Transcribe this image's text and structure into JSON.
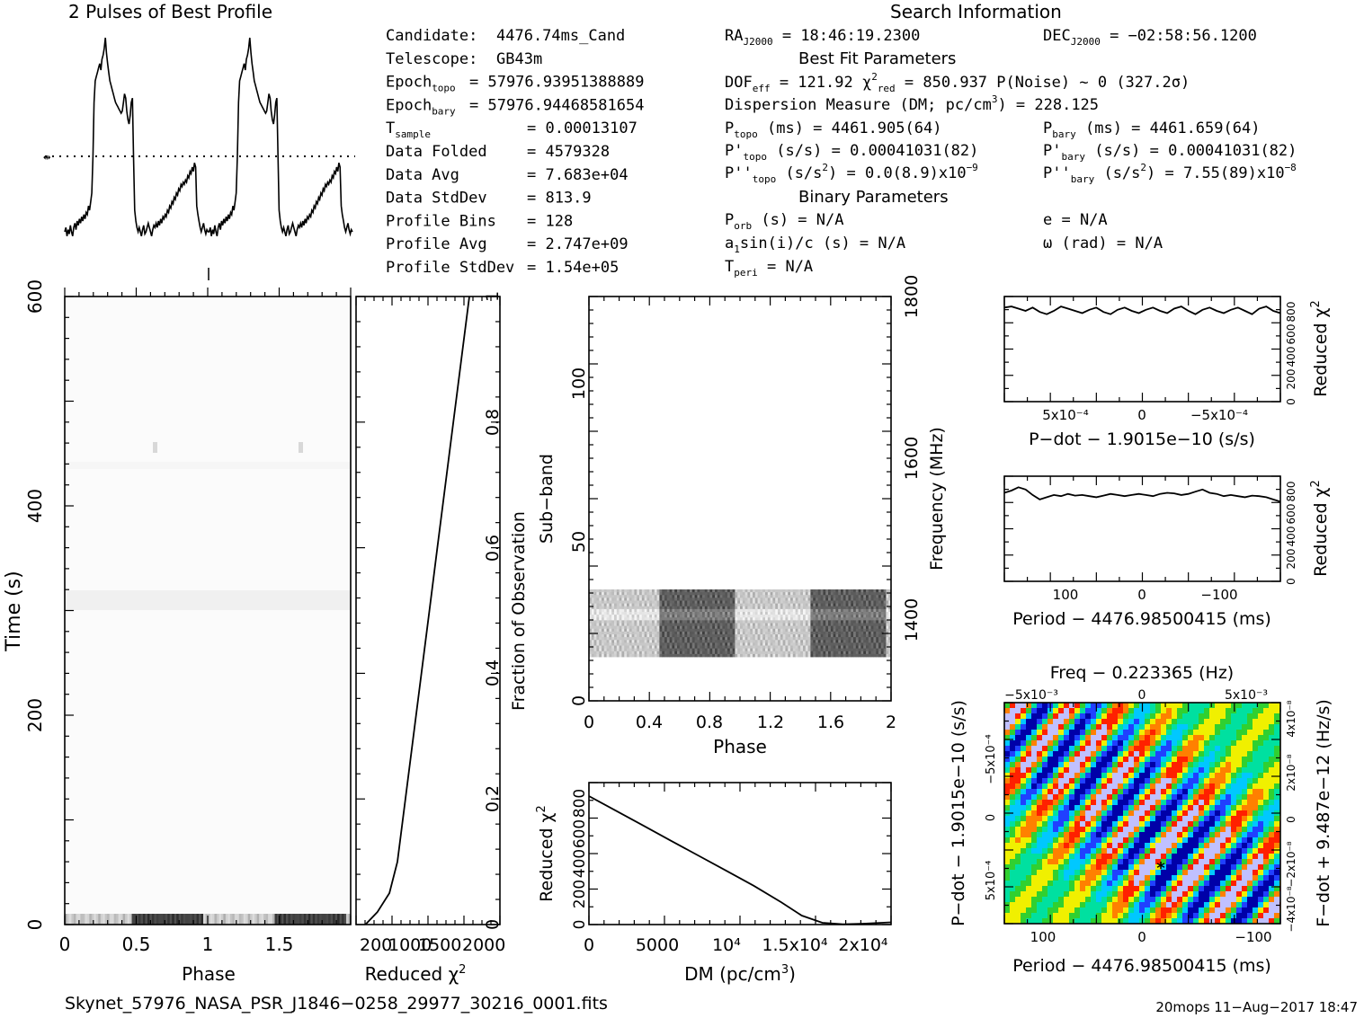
{
  "header": {
    "profile_title": "2 Pulses of Best Profile",
    "search_title": "Search Information",
    "best_fit_title": "Best Fit Parameters",
    "binary_title": "Binary Parameters"
  },
  "info_left": [
    {
      "k": "Candidate:",
      "v": "4476.74ms_Cand"
    },
    {
      "k": "Telescope:",
      "v": "GB43m"
    },
    {
      "k": "Epoch",
      "sub": "topo",
      "v": "= 57976.93951388889"
    },
    {
      "k": "Epoch",
      "sub": "bary",
      "v": "= 57976.94468581654"
    },
    {
      "k": "T",
      "sub": "sample",
      "v": "=  0.00013107"
    },
    {
      "k": "Data Folded",
      "v": "=  4579328"
    },
    {
      "k": "Data Avg",
      "v": "=  7.683e+04"
    },
    {
      "k": "Data StdDev",
      "v": "=  813.9"
    },
    {
      "k": "Profile Bins",
      "v": "=  128"
    },
    {
      "k": "Profile Avg",
      "v": "=  2.747e+09"
    },
    {
      "k": "Profile StdDev",
      "v": "=  1.54e+05"
    }
  ],
  "info_mid": {
    "ra": "RA_J2000 = 18:46:19.2300",
    "dof": "DOF_eff = 121.92  χ²_red = 850.937  P(Noise) ~ 0   (327.2σ)",
    "dm": "Dispersion Measure (DM; pc/cm³) = 228.125",
    "ptopo": "P_topo (ms) =  4461.905(64)",
    "pdtopo": "P'_topo (s/s) =  0.00041031(82)",
    "pddtopo": "P''_topo (s/s²) = 0.0(8.9)x10⁻⁹",
    "porb": "P_orb (s) = N/A",
    "asini": "a₁sin(i)/c (s) = N/A",
    "tperi": "T_peri = N/A"
  },
  "info_right": {
    "dec": "DEC_J2000 = −02:58:56.1200",
    "pbary": "P_bary (ms) =  4461.659(64)",
    "pdbary": "P'_bary (s/s) =  0.00041031(82)",
    "pddbary": "P''_bary (s/s²) =  7.55(89)x10⁻⁸",
    "ecc": "e = N/A",
    "omega": "ω (rad) = N/A"
  },
  "footer": {
    "filename": "Skynet_57976_NASA_PSR_J1846−0258_29977_30216_0001.fits",
    "stamp": "20mops 11−Aug−2017 18:47"
  },
  "chart_data": [
    {
      "type": "line",
      "name": "2 Pulses of Best Profile",
      "title": "2 Pulses of Best Profile",
      "x_range": [
        0,
        2
      ],
      "profile_one_pulse": [
        0.1,
        0.12,
        0.08,
        0.11,
        0.09,
        0.13,
        0.1,
        0.08,
        0.12,
        0.14,
        0.11,
        0.15,
        0.13,
        0.16,
        0.14,
        0.17,
        0.15,
        0.18,
        0.16,
        0.19,
        0.18,
        0.22,
        0.2,
        0.24,
        0.28,
        0.45,
        0.7,
        0.8,
        0.82,
        0.84,
        0.86,
        0.88,
        0.85,
        0.9,
        0.92,
        0.95,
        1.0,
        0.93,
        0.88,
        0.84,
        0.8,
        0.78,
        0.76,
        0.74,
        0.72,
        0.7,
        0.69,
        0.68,
        0.67,
        0.66,
        0.65,
        0.66,
        0.7,
        0.74,
        0.72,
        0.66,
        0.62,
        0.6,
        0.64,
        0.7,
        0.72,
        0.45,
        0.2,
        0.15,
        0.12,
        0.1,
        0.12,
        0.1,
        0.08,
        0.11,
        0.13,
        0.09,
        0.1,
        0.12,
        0.14,
        0.12,
        0.1,
        0.08,
        0.11,
        0.13,
        0.12,
        0.14,
        0.12,
        0.15,
        0.13,
        0.16,
        0.14,
        0.17,
        0.16,
        0.18,
        0.17,
        0.2,
        0.19,
        0.22,
        0.21,
        0.24,
        0.23,
        0.26,
        0.25,
        0.28,
        0.27,
        0.3,
        0.29,
        0.32,
        0.31,
        0.33,
        0.32,
        0.34,
        0.33,
        0.36,
        0.35,
        0.38,
        0.37,
        0.4,
        0.38,
        0.42,
        0.4,
        0.22,
        0.18,
        0.15,
        0.12,
        0.1,
        0.12,
        0.14,
        0.11,
        0.09,
        0.11,
        0.1
      ],
      "noise_line_level": 0.35
    },
    {
      "type": "heatmap",
      "name": "Time vs Phase",
      "xlabel": "Phase",
      "ylabel": "Time (s)",
      "xlim": [
        0,
        2
      ],
      "ylim": [
        0,
        600
      ],
      "xticks": [
        "0",
        "0.5",
        "1",
        "1.5"
      ],
      "yticks": [
        "0",
        "200",
        "400",
        "600"
      ],
      "features": [
        {
          "type": "dark band at bottom",
          "time_range": [
            0,
            10
          ]
        },
        {
          "type": "faint horizontal band",
          "time_range": [
            300,
            318
          ]
        },
        {
          "type": "faint spots",
          "time": 460,
          "phase": [
            0.63,
            1.63
          ]
        }
      ]
    },
    {
      "type": "line",
      "name": "Reduced χ² vs Fraction of Observation",
      "xlabel": "Reduced χ²",
      "ylabel": "Fraction of Observation",
      "xticks": [
        "200",
        "1000",
        "1500",
        "2000"
      ],
      "yticks": [
        "0",
        "0.2",
        "0.4",
        "0.6",
        "0.8",
        "1"
      ],
      "ylim": [
        0,
        1
      ],
      "points": [
        [
          50,
          0.0
        ],
        [
          200,
          0.02
        ],
        [
          350,
          0.05
        ],
        [
          450,
          0.1
        ],
        [
          550,
          0.2
        ],
        [
          650,
          0.3
        ],
        [
          750,
          0.4
        ],
        [
          850,
          0.5
        ],
        [
          950,
          0.6
        ],
        [
          1050,
          0.7
        ],
        [
          1150,
          0.8
        ],
        [
          1250,
          0.9
        ],
        [
          1350,
          1.0
        ]
      ]
    },
    {
      "type": "heatmap",
      "name": "Sub-band vs Phase",
      "xlabel": "Phase",
      "ylabel": "Sub-band",
      "y2label": "Frequency (MHz)",
      "xlim": [
        0,
        2
      ],
      "ylim": [
        0,
        128
      ],
      "xticks": [
        "0",
        "0.4",
        "0.8",
        "1.2",
        "1.6",
        "2"
      ],
      "yticks": [
        "0",
        "50",
        "100"
      ],
      "y2ticks": [
        "1400",
        "1600",
        "1800"
      ],
      "features": [
        {
          "type": "signal rows",
          "subband_range": [
            14,
            35
          ]
        },
        {
          "type": "dark pulse region",
          "phase_range": [
            0.46,
            0.96
          ]
        },
        {
          "type": "dark pulse region",
          "phase_range": [
            1.46,
            1.96
          ]
        }
      ]
    },
    {
      "type": "line",
      "name": "Reduced χ² vs DM",
      "xlabel": "DM (pc/cm³)",
      "ylabel": "Reduced χ²",
      "xticks": [
        "0",
        "5000",
        "10⁴",
        "1.5x10⁴",
        "2x10⁴"
      ],
      "yticks": [
        "0",
        "200",
        "400",
        "600",
        "800"
      ],
      "xlim": [
        0,
        22000
      ],
      "ylim": [
        0,
        950
      ],
      "points": [
        [
          0,
          860
        ],
        [
          2000,
          760
        ],
        [
          4000,
          660
        ],
        [
          6000,
          560
        ],
        [
          8000,
          460
        ],
        [
          10000,
          360
        ],
        [
          12000,
          260
        ],
        [
          14000,
          150
        ],
        [
          15500,
          60
        ],
        [
          17000,
          12
        ],
        [
          18500,
          2
        ],
        [
          20000,
          6
        ],
        [
          22000,
          15
        ]
      ]
    },
    {
      "type": "line",
      "name": "Reduced χ² vs P-dot",
      "xlabel": "P−dot − 1.9015e−10 (s/s)",
      "ylabel": "Reduced χ²",
      "xticks": [
        "5x10⁻⁴",
        "0",
        "−5x10⁻⁴"
      ],
      "yticks": [
        "0",
        "200",
        "400",
        "600",
        "800"
      ],
      "xlim": [
        0.0009,
        -0.0009
      ],
      "ylim": [
        0,
        950
      ],
      "values": [
        850,
        860,
        840,
        820,
        850,
        810,
        790,
        820,
        860,
        840,
        820,
        800,
        830,
        850,
        810,
        790,
        830,
        850,
        820,
        800,
        830,
        850,
        820,
        800,
        840,
        860,
        820,
        790,
        830,
        850,
        820,
        800,
        830,
        850,
        820,
        790,
        840,
        860,
        820,
        800
      ]
    },
    {
      "type": "line",
      "name": "Reduced χ² vs Period",
      "xlabel": "Period − 4476.98500415 (ms)",
      "ylabel": "Reduced χ²",
      "xticks": [
        "100",
        "0",
        "−100"
      ],
      "yticks": [
        "0",
        "200",
        "400",
        "600",
        "800"
      ],
      "xlim": [
        140,
        -140
      ],
      "ylim": [
        0,
        950
      ],
      "values": [
        800,
        820,
        850,
        830,
        780,
        740,
        760,
        780,
        770,
        790,
        775,
        780,
        770,
        760,
        775,
        790,
        780,
        770,
        780,
        790,
        780,
        770,
        790,
        800,
        795,
        780,
        790,
        810,
        830,
        800,
        790,
        770,
        780,
        770,
        760,
        775,
        770,
        760,
        740,
        720
      ]
    },
    {
      "type": "heatmap",
      "name": "P-dot vs Period",
      "title": "Freq − 0.223365 (Hz)",
      "xlabel": "Period − 4476.98500415 (ms)",
      "ylabel": "P−dot − 1.9015e−10 (s/s)",
      "y2label": "F−dot + 9.487e−12 (Hz/s)",
      "xticks": [
        "100",
        "0",
        "−100"
      ],
      "x2ticks": [
        "−5x10⁻³",
        "0",
        "5x10⁻³"
      ],
      "yticks": [
        "−5x10⁻⁴",
        "0",
        "5x10⁻⁴"
      ],
      "y2ticks": [
        "4x10⁻⁸",
        "2x10⁻⁸",
        "0",
        "−2x10⁻⁸",
        "−4x10⁻⁸"
      ],
      "best_fit_marker": {
        "period": 18,
        "pdot": 0.0003
      },
      "colormap": [
        "#0000a8",
        "#2040ff",
        "#00c8ff",
        "#00e0a0",
        "#30d030",
        "#f0f000",
        "#ff8000",
        "#ff2000",
        "#c0c0ff"
      ]
    }
  ]
}
